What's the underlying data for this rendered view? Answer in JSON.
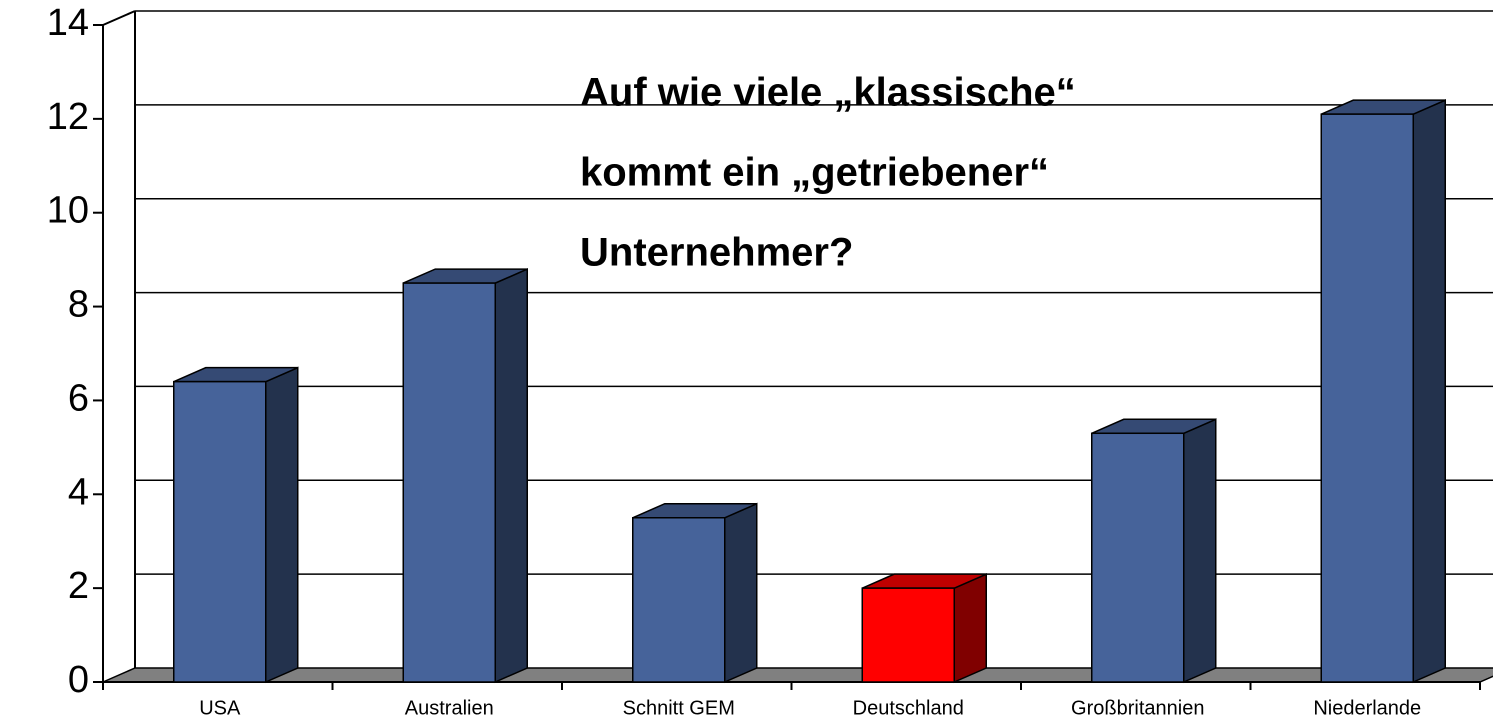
{
  "chart_data": {
    "type": "bar3d",
    "title": [
      "Auf wie viele „klassische“",
      "kommt ein „getriebener“",
      "Unternehmer?"
    ],
    "categories": [
      "USA",
      "Australien",
      "Schnitt GEM",
      "Deutschland",
      "Großbritannien",
      "Niederlande"
    ],
    "values": [
      6.4,
      8.5,
      3.5,
      2.0,
      5.3,
      12.1
    ],
    "colors": [
      "#46639a",
      "#46639a",
      "#46639a",
      "#ff0000",
      "#46639a",
      "#46639a"
    ],
    "ylim": [
      0,
      14
    ],
    "yticks": [
      0,
      2,
      4,
      6,
      8,
      10,
      12,
      14
    ],
    "grid": true
  }
}
